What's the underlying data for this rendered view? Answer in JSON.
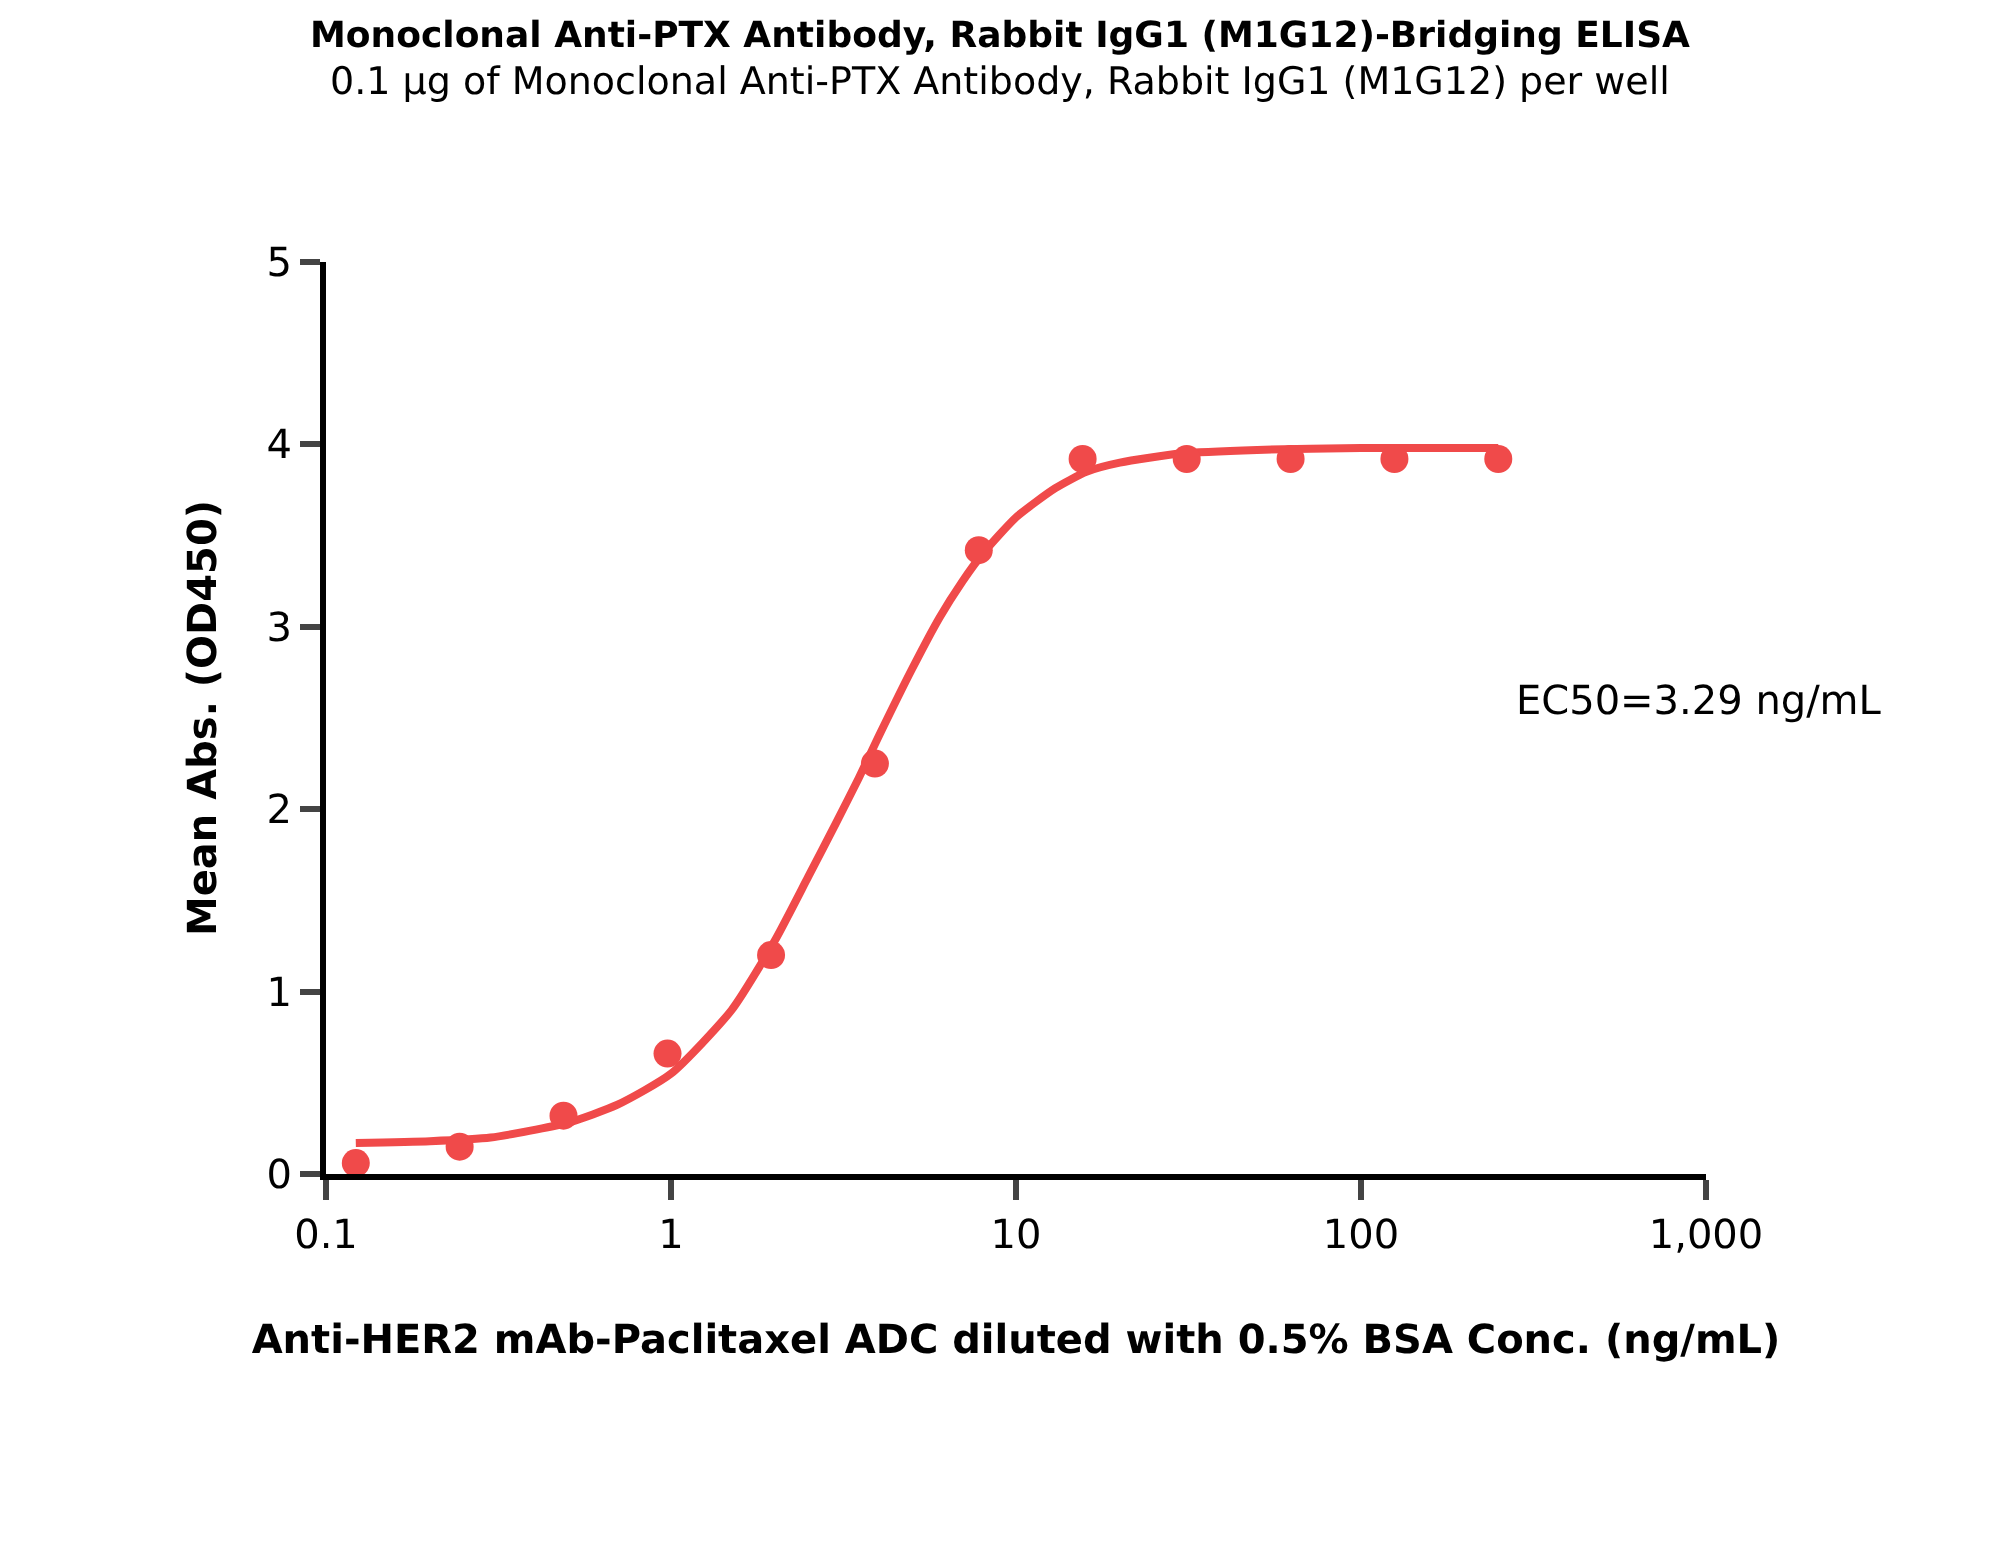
{
  "chart_data": {
    "type": "scatter",
    "title": "Monoclonal Anti-PTX Antibody, Rabbit IgG1 (M1G12)-Bridging ELISA",
    "subtitle": "0.1 μg of Monoclonal Anti-PTX Antibody, Rabbit IgG1 (M1G12) per well",
    "xlabel": "Anti-HER2 mAb-Paclitaxel ADC diluted with 0.5% BSA Conc. (ng/mL)",
    "ylabel": "Mean Abs. (OD450)",
    "annotations": [
      "EC50=3.29 ng/mL"
    ],
    "series": [
      {
        "marker": "circle",
        "color": "#f04a4a",
        "x": [
          0.122,
          0.244,
          0.488,
          0.977,
          1.95,
          3.9,
          7.8,
          15.6,
          31.25,
          62.5,
          125,
          250
        ],
        "values": [
          0.06,
          0.15,
          0.32,
          0.66,
          1.2,
          2.25,
          3.42,
          3.92,
          3.92,
          3.92,
          3.92,
          3.92
        ]
      },
      {
        "type": "line",
        "marker": "none",
        "color": "#f04a4a",
        "x": [
          0.122,
          0.2,
          0.3,
          0.5,
          0.7,
          1,
          1.5,
          2,
          2.5,
          3,
          3.5,
          4,
          5,
          6,
          7,
          8,
          10,
          13,
          16,
          20,
          30,
          50,
          100,
          250
        ],
        "values": [
          0.17,
          0.18,
          0.2,
          0.28,
          0.38,
          0.55,
          0.9,
          1.28,
          1.63,
          1.92,
          2.17,
          2.4,
          2.77,
          3.05,
          3.25,
          3.4,
          3.6,
          3.76,
          3.85,
          3.9,
          3.95,
          3.97,
          3.98,
          3.98
        ]
      }
    ],
    "log": "x",
    "xlim": [
      0.1,
      1000
    ],
    "xticks": [
      0.1,
      1,
      10,
      100,
      {
        "value": 1000,
        "label": "1,000"
      }
    ],
    "ylim": [
      0,
      5
    ],
    "yticks": [
      0,
      1,
      2,
      3,
      4,
      5
    ],
    "legend": false
  }
}
